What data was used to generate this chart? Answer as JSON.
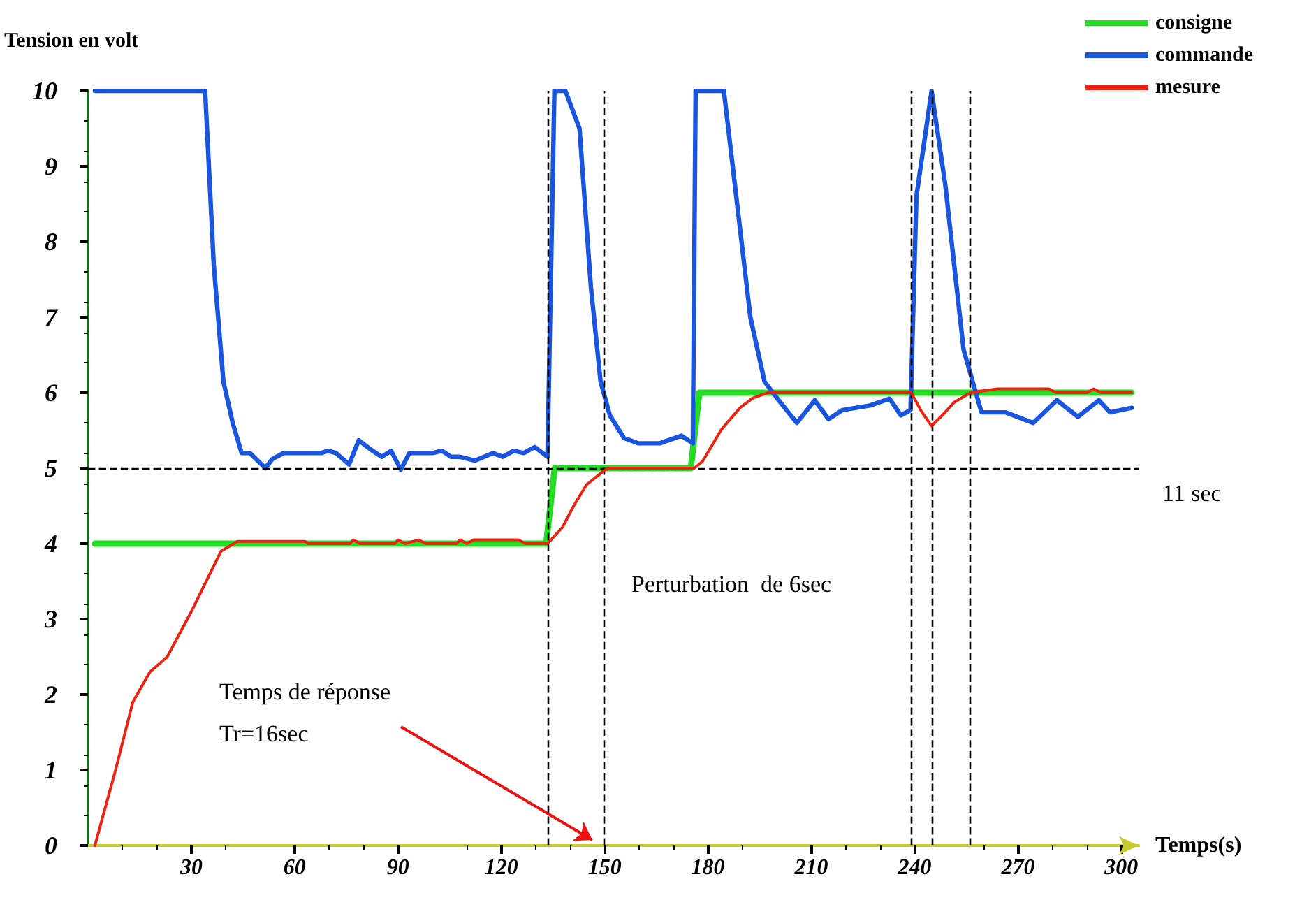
{
  "chart_data": {
    "type": "line",
    "ylabel": "Tension en volt",
    "xlabel": "Temps(s)",
    "xlim": [
      0,
      305
    ],
    "xticks": [
      30,
      60,
      90,
      120,
      150,
      180,
      210,
      240,
      270,
      300
    ],
    "ylim": [
      0,
      10
    ],
    "yticks": [
      0,
      1,
      2,
      3,
      4,
      5,
      6,
      7,
      8,
      9,
      10
    ],
    "grid": false,
    "legend": "top right",
    "marker": "none",
    "line_style": "solid",
    "series": [
      {
        "name": "consigne",
        "color": "#22dd22",
        "x": [
          2,
          133,
          135.5,
          175,
          177.5,
          303
        ],
        "values": [
          4,
          4,
          5,
          5,
          6,
          6
        ]
      },
      {
        "name": "commande",
        "color": "#1a55e0",
        "x": [
          2,
          34,
          36.5,
          39.3,
          42,
          44.6,
          47,
          51.5,
          53.5,
          56.8,
          67.7,
          69.7,
          72,
          75.8,
          78.6,
          82,
          85.3,
          88,
          90.8,
          93.3,
          100,
          102.8,
          105.4,
          108,
          112.3,
          117.6,
          120.4,
          123.6,
          126.5,
          129.7,
          133.4,
          135.4,
          138.6,
          142.7,
          146,
          148.8,
          151.5,
          155.6,
          159.7,
          166,
          172.3,
          175.6,
          176.4,
          184.6,
          188.2,
          192.3,
          196.4,
          200.5,
          205.8,
          211,
          215,
          219,
          227,
          232.7,
          236,
          238.8,
          240.5,
          244.9,
          248.9,
          254.2,
          259.4,
          266.3,
          274.4,
          281.3,
          287.4,
          293.5,
          296.7,
          303
        ],
        "values": [
          10,
          10,
          7.7,
          6.15,
          5.6,
          5.2,
          5.2,
          5.0,
          5.12,
          5.2,
          5.2,
          5.23,
          5.2,
          5.05,
          5.37,
          5.25,
          5.15,
          5.23,
          4.98,
          5.2,
          5.2,
          5.23,
          5.15,
          5.15,
          5.1,
          5.2,
          5.15,
          5.23,
          5.2,
          5.28,
          5.15,
          10,
          10,
          9.5,
          7.4,
          6.15,
          5.7,
          5.4,
          5.33,
          5.33,
          5.43,
          5.33,
          10,
          10,
          8.6,
          7.0,
          6.15,
          5.9,
          5.6,
          5.9,
          5.65,
          5.77,
          5.83,
          5.92,
          5.7,
          5.77,
          8.6,
          10,
          8.75,
          6.57,
          5.74,
          5.74,
          5.6,
          5.9,
          5.68,
          5.9,
          5.74,
          5.8
        ]
      },
      {
        "name": "mesure",
        "color": "#ee2211",
        "x": [
          2,
          8,
          13,
          18,
          23,
          30,
          38.6,
          43.4,
          63,
          64,
          76,
          77,
          79,
          89,
          90,
          92,
          96,
          98,
          107,
          108,
          110,
          112,
          125,
          127,
          133.4,
          137.8,
          141,
          144.7,
          149.6,
          151,
          176,
          178.4,
          184,
          189.3,
          193,
          197.4,
          239,
          242,
          244.9,
          248,
          251.4,
          256.2,
          264,
          279,
          281,
          290,
          292,
          294,
          303
        ],
        "values": [
          0,
          1.0,
          1.9,
          2.3,
          2.5,
          3.1,
          3.9,
          4.03,
          4.03,
          4.0,
          4.0,
          4.05,
          4.0,
          4.0,
          4.05,
          4.0,
          4.05,
          4.0,
          4.0,
          4.05,
          4.0,
          4.05,
          4.05,
          4.0,
          4.0,
          4.22,
          4.5,
          4.78,
          4.96,
          5.0,
          5.0,
          5.09,
          5.52,
          5.8,
          5.93,
          6.0,
          6.0,
          5.75,
          5.56,
          5.7,
          5.87,
          6.0,
          6.05,
          6.05,
          6.0,
          6.0,
          6.05,
          6.0,
          6.0
        ]
      }
    ],
    "ref_lines": [
      {
        "axis": "y",
        "value": 5,
        "color": "#000000",
        "line_style": "dashed"
      },
      {
        "axis": "x",
        "value": 133.4,
        "color": "#000000",
        "line_style": "dashed"
      },
      {
        "axis": "x",
        "value": 149.6,
        "color": "#000000",
        "line_style": "dashed"
      },
      {
        "axis": "x",
        "value": 239,
        "color": "#000000",
        "line_style": "dashed"
      },
      {
        "axis": "x",
        "value": 245,
        "color": "#000000",
        "line_style": "dashed"
      },
      {
        "axis": "x",
        "value": 256,
        "color": "#000000",
        "line_style": "dashed"
      }
    ],
    "annotations": [
      "Temps de réponse\nTr=16sec",
      "Perturbation  de 6sec",
      "11 sec"
    ]
  }
}
